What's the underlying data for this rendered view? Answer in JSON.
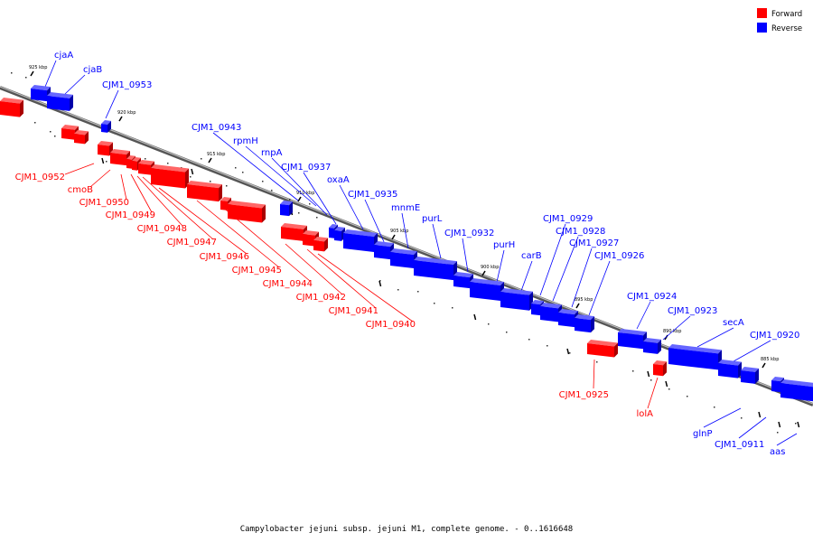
{
  "caption": "Campylobacter jejuni subsp. jejuni M1, complete genome. - 0..1616648",
  "legend": [
    {
      "label": "Forward",
      "color": "#ff0000"
    },
    {
      "label": "Reverse",
      "color": "#0000ff"
    }
  ],
  "colors": {
    "forward": "#ff0000",
    "reverse": "#0000ff",
    "backbone": "#888888"
  },
  "ticks": [
    "925 kbp",
    "920 kbp",
    "915 kbp",
    "910 kbp",
    "905 kbp",
    "900 kbp",
    "895 kbp",
    "890 kbp",
    "885 kbp"
  ],
  "genes": [
    {
      "label": "cjaA",
      "strand": "reverse"
    },
    {
      "label": "cjaB",
      "strand": "reverse"
    },
    {
      "label": "CJM1_0953",
      "strand": "reverse"
    },
    {
      "label": "CJM1_0943",
      "strand": "reverse"
    },
    {
      "label": "rpmH",
      "strand": "reverse"
    },
    {
      "label": "rnpA",
      "strand": "reverse"
    },
    {
      "label": "CJM1_0937",
      "strand": "reverse"
    },
    {
      "label": "oxaA",
      "strand": "reverse"
    },
    {
      "label": "CJM1_0935",
      "strand": "reverse"
    },
    {
      "label": "mnmE",
      "strand": "reverse"
    },
    {
      "label": "purL",
      "strand": "reverse"
    },
    {
      "label": "CJM1_0932",
      "strand": "reverse"
    },
    {
      "label": "purH",
      "strand": "reverse"
    },
    {
      "label": "carB",
      "strand": "reverse"
    },
    {
      "label": "CJM1_0929",
      "strand": "reverse"
    },
    {
      "label": "CJM1_0928",
      "strand": "reverse"
    },
    {
      "label": "CJM1_0927",
      "strand": "reverse"
    },
    {
      "label": "CJM1_0926",
      "strand": "reverse"
    },
    {
      "label": "CJM1_0924",
      "strand": "reverse"
    },
    {
      "label": "CJM1_0923",
      "strand": "reverse"
    },
    {
      "label": "secA",
      "strand": "reverse"
    },
    {
      "label": "CJM1_0920",
      "strand": "reverse"
    },
    {
      "label": "glnP",
      "strand": "reverse"
    },
    {
      "label": "CJM1_0911",
      "strand": "reverse"
    },
    {
      "label": "aas",
      "strand": "reverse"
    },
    {
      "label": "CJM1_0952",
      "strand": "forward"
    },
    {
      "label": "cmoB",
      "strand": "forward"
    },
    {
      "label": "CJM1_0950",
      "strand": "forward"
    },
    {
      "label": "CJM1_0949",
      "strand": "forward"
    },
    {
      "label": "CJM1_0948",
      "strand": "forward"
    },
    {
      "label": "CJM1_0947",
      "strand": "forward"
    },
    {
      "label": "CJM1_0946",
      "strand": "forward"
    },
    {
      "label": "CJM1_0945",
      "strand": "forward"
    },
    {
      "label": "CJM1_0944",
      "strand": "forward"
    },
    {
      "label": "CJM1_0942",
      "strand": "forward"
    },
    {
      "label": "CJM1_0941",
      "strand": "forward"
    },
    {
      "label": "CJM1_0940",
      "strand": "forward"
    },
    {
      "label": "CJM1_0925",
      "strand": "forward"
    },
    {
      "label": "lolA",
      "strand": "forward"
    }
  ]
}
